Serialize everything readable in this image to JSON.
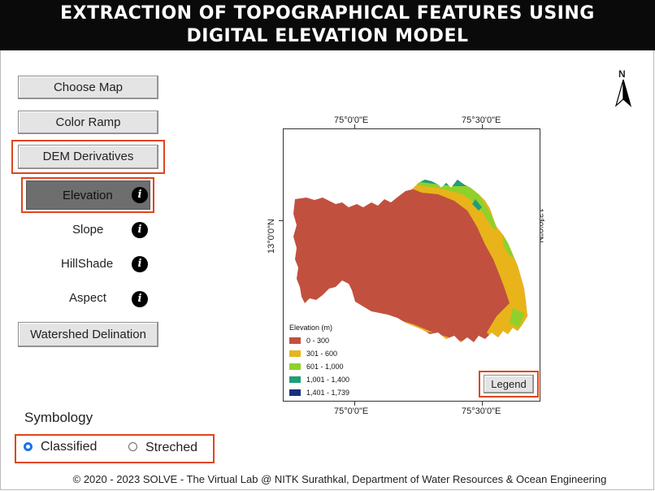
{
  "header": {
    "title_line1": "EXTRACTION OF TOPOGRAPHICAL FEATURES USING",
    "title_line2": "DIGITAL ELEVATION MODEL"
  },
  "menu": {
    "choose_map": "Choose Map",
    "color_ramp": "Color Ramp",
    "dem_derivatives": "DEM Derivatives",
    "watershed": "Watershed Delination"
  },
  "derivatives": [
    {
      "label": "Elevation",
      "selected": true
    },
    {
      "label": "Slope",
      "selected": false
    },
    {
      "label": "HillShade",
      "selected": false
    },
    {
      "label": "Aspect",
      "selected": false
    }
  ],
  "info_glyph": "i",
  "symbology": {
    "title": "Symbology",
    "classified": "Classified",
    "streched": "Streched",
    "selected": "Classified"
  },
  "map": {
    "north_label": "N",
    "top_lon_left": "75°0'0\"E",
    "top_lon_right": "75°30'0\"E",
    "bottom_lon_left": "75°0'0\"E",
    "bottom_lon_right": "75°30'0\"E",
    "lat_left": "13°0'0\"N",
    "lat_right": "13°0'0\"N",
    "legend_title": "Elevation (m)",
    "legend_button": "Legend",
    "classes": [
      {
        "range": "0 - 300",
        "color": "#c1503f"
      },
      {
        "range": "301 - 600",
        "color": "#e8b41a"
      },
      {
        "range": "601 - 1,000",
        "color": "#8fd12a"
      },
      {
        "range": "1,001 - 1,400",
        "color": "#1f9e7a"
      },
      {
        "range": "1,401 - 1,739",
        "color": "#1a2f7a"
      }
    ]
  },
  "colors": {
    "highlight": "#e0451c",
    "radio_selected": "#1a73e8"
  },
  "footer": "© 2020 - 2023 SOLVE - The Virtual Lab @ NITK Surathkal, Department of Water Resources & Ocean Engineering"
}
